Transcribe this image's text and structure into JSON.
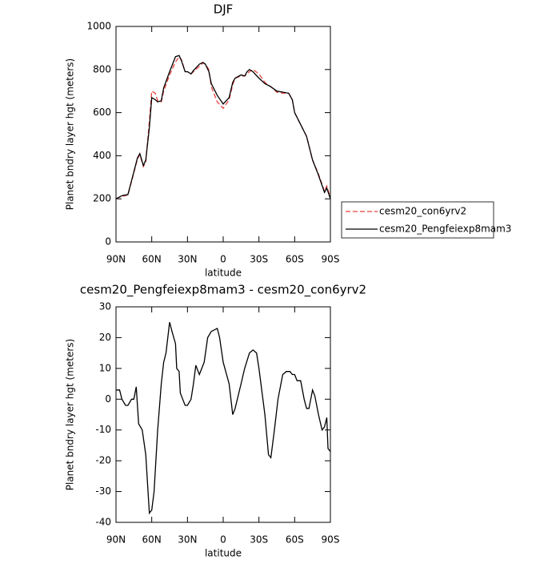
{
  "chart_data": [
    {
      "type": "line",
      "title": "DJF",
      "xlabel": "latitude",
      "ylabel": "Planet bndry layer hgt (meters)",
      "x": [
        90,
        85,
        80,
        75,
        72,
        70,
        67,
        65,
        62,
        60,
        57,
        55,
        52,
        50,
        45,
        40,
        37,
        35,
        32,
        30,
        27,
        25,
        20,
        17,
        15,
        12,
        10,
        5,
        0,
        -5,
        -8,
        -10,
        -15,
        -18,
        -20,
        -22,
        -25,
        -30,
        -35,
        -40,
        -45,
        -50,
        -55,
        -58,
        -60,
        -65,
        -70,
        -75,
        -80,
        -85,
        -87,
        -90
      ],
      "series": [
        {
          "name": "cesm20_con6yrv2",
          "color": "#e8423f",
          "dash": true,
          "values": [
            200,
            212,
            218,
            320,
            385,
            405,
            350,
            370,
            560,
            700,
            690,
            655,
            650,
            700,
            775,
            835,
            860,
            845,
            790,
            790,
            780,
            790,
            815,
            830,
            825,
            800,
            720,
            650,
            620,
            660,
            730,
            760,
            770,
            770,
            780,
            790,
            800,
            780,
            740,
            720,
            695,
            690,
            690,
            660,
            600,
            545,
            490,
            380,
            315,
            235,
            260,
            205
          ]
        },
        {
          "name": "cesm20_Pengfeiexp8mam3",
          "color": "#000000",
          "dash": false,
          "values": [
            200,
            215,
            220,
            325,
            390,
            410,
            355,
            380,
            530,
            670,
            660,
            650,
            655,
            715,
            790,
            860,
            865,
            840,
            790,
            790,
            780,
            795,
            825,
            833,
            825,
            790,
            735,
            680,
            640,
            670,
            740,
            760,
            775,
            770,
            790,
            800,
            790,
            760,
            735,
            720,
            700,
            695,
            690,
            660,
            600,
            545,
            490,
            380,
            310,
            230,
            250,
            200
          ]
        }
      ],
      "xlim": [
        90,
        -90
      ],
      "xticks": [
        {
          "value": 90,
          "label": "90N"
        },
        {
          "value": 60,
          "label": "60N"
        },
        {
          "value": 30,
          "label": "30N"
        },
        0,
        {
          "value": -30,
          "label": "30S"
        },
        {
          "value": -60,
          "label": "60S"
        },
        {
          "value": -90,
          "label": "90S"
        }
      ],
      "ylim": [
        0,
        1000
      ],
      "yticks": [
        0,
        200,
        400,
        600,
        800,
        1000
      ],
      "legend": "outside-right"
    },
    {
      "type": "line",
      "title": "cesm20_Pengfeiexp8mam3 - cesm20_con6yrv2",
      "xlabel": "latitude",
      "ylabel": "Planet bndry layer hgt (meters)",
      "x": [
        90,
        87,
        85,
        82,
        80,
        77,
        75,
        73,
        71,
        68,
        65,
        62,
        60,
        58,
        55,
        52,
        50,
        48,
        45,
        43,
        40,
        39,
        37,
        36,
        34,
        32,
        30,
        27,
        25,
        23,
        21,
        20,
        18,
        16,
        13,
        10,
        5,
        3,
        0,
        -5,
        -8,
        -10,
        -15,
        -18,
        -22,
        -25,
        -28,
        -30,
        -35,
        -38,
        -40,
        -43,
        -46,
        -50,
        -53,
        -56,
        -58,
        -60,
        -62,
        -65,
        -68,
        -70,
        -72,
        -75,
        -77,
        -80,
        -83,
        -85,
        -87,
        -88,
        -90
      ],
      "values": [
        3,
        3,
        0,
        -2,
        -2,
        0,
        0,
        4,
        -8,
        -10,
        -18,
        -37,
        -36,
        -30,
        -10,
        5,
        12,
        15,
        25,
        22,
        18,
        10,
        9,
        2,
        0,
        -2,
        -2,
        0,
        5,
        11,
        9,
        8,
        10,
        12,
        20,
        22,
        23,
        20,
        12,
        5,
        -5,
        -3,
        5,
        10,
        15,
        16,
        15,
        10,
        -5,
        -18,
        -19,
        -10,
        0,
        8,
        9,
        9,
        8,
        8,
        6,
        6,
        0,
        -3,
        -3,
        3,
        1,
        -5,
        -10,
        -9,
        -6,
        -16,
        -17
      ],
      "color": "#000000",
      "xlim": [
        90,
        -90
      ],
      "xticks": [
        {
          "value": 90,
          "label": "90N"
        },
        {
          "value": 60,
          "label": "60N"
        },
        {
          "value": 30,
          "label": "30N"
        },
        0,
        {
          "value": -30,
          "label": "30S"
        },
        {
          "value": -60,
          "label": "60S"
        },
        {
          "value": -90,
          "label": "90S"
        }
      ],
      "ylim": [
        -40,
        30
      ],
      "yticks": [
        -40,
        -30,
        -20,
        -10,
        0,
        10,
        20,
        30
      ]
    }
  ]
}
